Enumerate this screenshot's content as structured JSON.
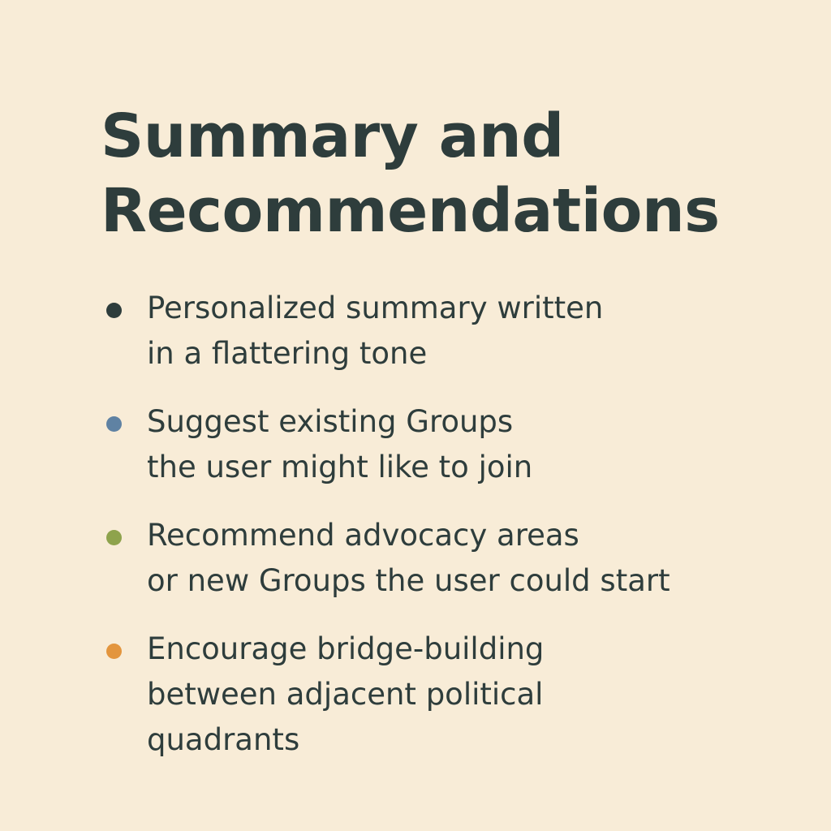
{
  "title": {
    "line1": "Summary and",
    "line2": "Recommendations"
  },
  "colors": {
    "background": "#f8ecd7",
    "text": "#2e3d3c"
  },
  "items": [
    {
      "lines": [
        "Personalized summary written",
        "in a flattering tone"
      ],
      "bullet_color": "#2e3d3c"
    },
    {
      "lines": [
        "Suggest existing Groups",
        "the user might like to join"
      ],
      "bullet_color": "#5f82a3"
    },
    {
      "lines": [
        "Recommend advocacy areas",
        "or new Groups the user could start"
      ],
      "bullet_color": "#8ea34c"
    },
    {
      "lines": [
        "Encourage bridge-building",
        "between adjacent political",
        "quadrants"
      ],
      "bullet_color": "#e3953d"
    }
  ]
}
